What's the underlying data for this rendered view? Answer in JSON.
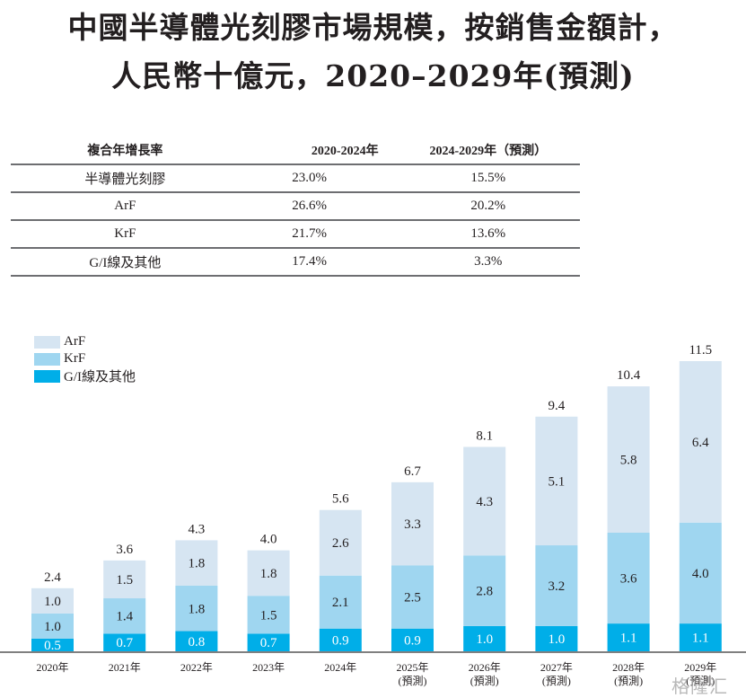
{
  "title": {
    "line1": "中國半導體光刻膠市場規模，按銷售金額計，",
    "line2": "人民幣十億元，2020–2029年(預測)"
  },
  "cagr_table": {
    "headers": [
      "複合年增長率",
      "2020-2024年",
      "2024-2029年（預測）"
    ],
    "rows": [
      [
        "半導體光刻膠",
        "23.0%",
        "15.5%"
      ],
      [
        "ArF",
        "26.6%",
        "20.2%"
      ],
      [
        "KrF",
        "21.7%",
        "13.6%"
      ],
      [
        "G/I線及其他",
        "17.4%",
        "3.3%"
      ]
    ]
  },
  "colors": {
    "ArF": "#d6e5f2",
    "KrF": "#9fd6f0",
    "GI": "#00aee8",
    "axis": "#808080"
  },
  "watermark": "格隆汇",
  "chart_data": {
    "type": "bar",
    "stacked": true,
    "title": "中國半導體光刻膠市場規模，按銷售金額計，人民幣十億元，2020–2029年(預測)",
    "xlabel": "",
    "ylabel": "",
    "ylim": [
      0,
      11.5
    ],
    "grid": false,
    "legend_position": "top-left",
    "categories": [
      "2020年",
      "2021年",
      "2022年",
      "2023年",
      "2024年",
      "2025年",
      "2026年",
      "2027年",
      "2028年",
      "2029年"
    ],
    "category_sublabels": [
      "",
      "",
      "",
      "",
      "",
      "(預測)",
      "(預測)",
      "(預測)",
      "(預測)",
      "(預測)"
    ],
    "series": [
      {
        "name": "G/I線及其他",
        "key": "GI",
        "values": [
          0.5,
          0.7,
          0.8,
          0.7,
          0.9,
          0.9,
          1.0,
          1.0,
          1.1,
          1.1
        ]
      },
      {
        "name": "KrF",
        "key": "KrF",
        "values": [
          1.0,
          1.4,
          1.8,
          1.5,
          2.1,
          2.5,
          2.8,
          3.2,
          3.6,
          4.0
        ]
      },
      {
        "name": "ArF",
        "key": "ArF",
        "values": [
          1.0,
          1.5,
          1.8,
          1.8,
          2.6,
          3.3,
          4.3,
          5.1,
          5.8,
          6.4
        ]
      }
    ],
    "totals": [
      2.4,
      3.6,
      4.3,
      4.0,
      5.6,
      6.7,
      8.1,
      9.4,
      10.4,
      11.5
    ],
    "legend": [
      "ArF",
      "KrF",
      "G/I線及其他"
    ]
  }
}
